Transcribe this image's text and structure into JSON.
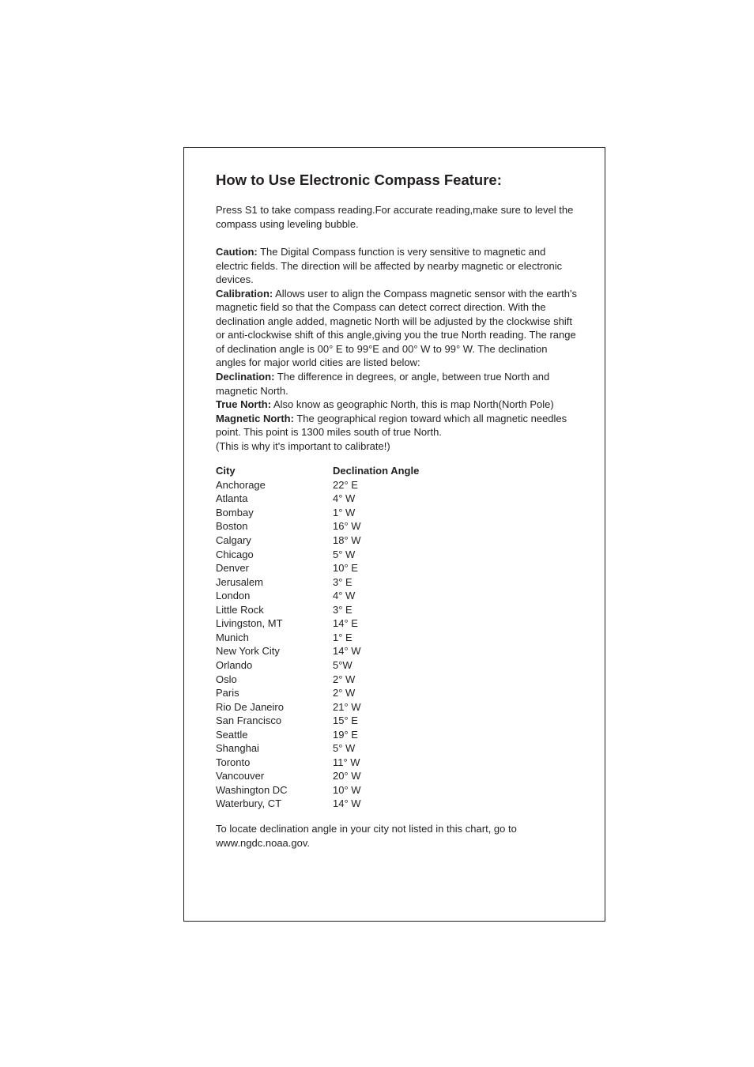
{
  "title": "How to Use Electronic Compass Feature:",
  "intro": "Press S1 to take compass reading.For accurate reading,make sure to level the compass using leveling bubble.",
  "defs": {
    "caution_label": "Caution:",
    "caution_text": " The Digital Compass function is very sensitive to magnetic and electric fields. The direction will be affected by nearby magnetic or electronic devices.",
    "calibration_label": "Calibration:",
    "calibration_text": " Allows user to align the Compass magnetic sensor with the earth's magnetic field so that the Compass can detect correct direction. With the declination angle added,  magnetic North will be adjusted by the clockwise shift or anti-clockwise shift of this angle,giving you the true North reading. The range of declination angle is 00° E to 99°E and 00° W to 99° W.  The declination angles for major world cities are listed below:",
    "declination_label": "Declination:",
    "declination_text": "  The difference in degrees, or angle, between true North and magnetic North.",
    "truenorth_label": "True North:",
    "truenorth_text": "  Also know as geographic North, this is map North(North Pole)",
    "magnorth_label": "Magnetic North:",
    "magnorth_text": "  The geographical region toward which all magnetic needles point.  This point is 1300 miles south of true North.",
    "why": "(This is why it's important to calibrate!)"
  },
  "table": {
    "head_city": "City",
    "head_angle": "Declination Angle",
    "rows": [
      {
        "city": "Anchorage",
        "angle": "22° E"
      },
      {
        "city": "Atlanta",
        "angle": "4° W"
      },
      {
        "city": "Bombay",
        "angle": "1° W"
      },
      {
        "city": "Boston",
        "angle": "16° W"
      },
      {
        "city": "Calgary",
        "angle": "18° W"
      },
      {
        "city": "Chicago",
        "angle": "5° W"
      },
      {
        "city": "Denver",
        "angle": "10° E"
      },
      {
        "city": "Jerusalem",
        "angle": "3° E"
      },
      {
        "city": "London",
        "angle": "4° W"
      },
      {
        "city": "Little Rock",
        "angle": "3° E"
      },
      {
        "city": "Livingston, MT",
        "angle": "14° E"
      },
      {
        "city": "Munich",
        "angle": "1° E"
      },
      {
        "city": "New York City",
        "angle": "14° W"
      },
      {
        "city": "Orlando",
        "angle": "5°W"
      },
      {
        "city": "Oslo",
        "angle": "2° W"
      },
      {
        "city": "Paris",
        "angle": "2° W"
      },
      {
        "city": "Rio De Janeiro",
        "angle": "21° W"
      },
      {
        "city": "San Francisco",
        "angle": "15° E"
      },
      {
        "city": "Seattle",
        "angle": "19° E"
      },
      {
        "city": "Shanghai",
        "angle": "5° W"
      },
      {
        "city": "Toronto",
        "angle": "11° W"
      },
      {
        "city": "Vancouver",
        "angle": "20° W"
      },
      {
        "city": "Washington DC",
        "angle": "10° W"
      },
      {
        "city": "Waterbury, CT",
        "angle": "14° W"
      }
    ]
  },
  "footer": "To locate declination angle in your city not listed in this chart, go to www.ngdc.noaa.gov."
}
